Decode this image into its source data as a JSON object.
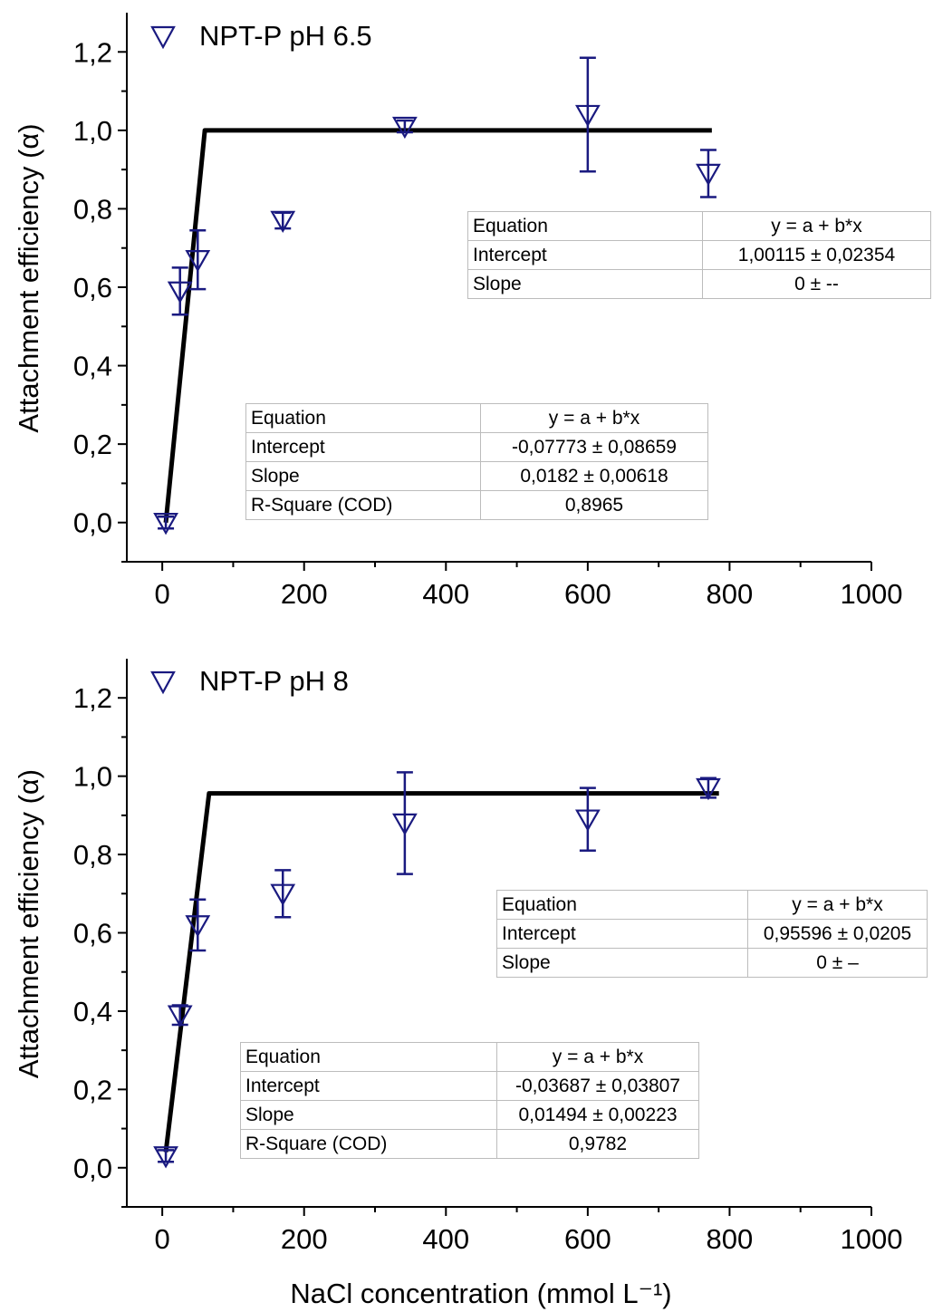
{
  "chart_data": [
    {
      "type": "scatter",
      "xlabel": "",
      "ylabel": "Attachment efficiency (α)",
      "xlim": [
        -50,
        1000
      ],
      "ylim": [
        -0.1,
        1.3
      ],
      "xticks": [
        0,
        200,
        400,
        600,
        800,
        1000
      ],
      "yticks": [
        0.0,
        0.2,
        0.4,
        0.6,
        0.8,
        1.0,
        1.2
      ],
      "xtick_labels": [
        "0",
        "200",
        "400",
        "600",
        "800",
        "1000"
      ],
      "ytick_labels": [
        "0,0",
        "0,2",
        "0,4",
        "0,6",
        "0,8",
        "1,0",
        "1,2"
      ],
      "legend_position": "top-left",
      "series": [
        {
          "name": "NPT-P pH 6.5",
          "marker": "down-triangle",
          "color": "#1a1a80",
          "x": [
            5,
            25,
            50,
            170,
            342,
            600,
            770
          ],
          "y": [
            0.0,
            0.59,
            0.67,
            0.77,
            1.01,
            1.04,
            0.89
          ],
          "err": [
            0.015,
            0.06,
            0.075,
            0.02,
            0.015,
            0.145,
            0.06
          ]
        }
      ],
      "fit_line": {
        "color": "#000000",
        "x": [
          5,
          60,
          775
        ],
        "y": [
          0.0,
          1.0,
          1.0
        ]
      },
      "tables": [
        {
          "rows": [
            [
              "Equation",
              "y = a + b*x"
            ],
            [
              "Intercept",
              "1,00115 ± 0,02354"
            ],
            [
              "Slope",
              "0 ± --"
            ]
          ]
        },
        {
          "rows": [
            [
              "Equation",
              "y = a + b*x"
            ],
            [
              "Intercept",
              "-0,07773 ± 0,08659"
            ],
            [
              "Slope",
              "0,0182 ± 0,00618"
            ],
            [
              "R-Square (COD)",
              "0,8965"
            ]
          ]
        }
      ]
    },
    {
      "type": "scatter",
      "xlabel": "NaCl concentration (mmol L⁻¹)",
      "ylabel": "Attachment efficiency (α)",
      "xlim": [
        -50,
        1000
      ],
      "ylim": [
        -0.1,
        1.3
      ],
      "xticks": [
        0,
        200,
        400,
        600,
        800,
        1000
      ],
      "yticks": [
        0.0,
        0.2,
        0.4,
        0.6,
        0.8,
        1.0,
        1.2
      ],
      "xtick_labels": [
        "0",
        "200",
        "400",
        "600",
        "800",
        "1000"
      ],
      "ytick_labels": [
        "0,0",
        "0,2",
        "0,4",
        "0,6",
        "0,8",
        "1,0",
        "1,2"
      ],
      "legend_position": "top-left",
      "series": [
        {
          "name": "NPT-P pH 8",
          "marker": "down-triangle",
          "color": "#1a1a80",
          "x": [
            5,
            25,
            50,
            170,
            342,
            600,
            770
          ],
          "y": [
            0.03,
            0.39,
            0.62,
            0.7,
            0.88,
            0.89,
            0.97
          ],
          "err": [
            0.015,
            0.025,
            0.065,
            0.06,
            0.13,
            0.08,
            0.025
          ]
        }
      ],
      "fit_line": {
        "color": "#000000",
        "x": [
          5,
          66,
          785
        ],
        "y": [
          0.04,
          0.956,
          0.956
        ]
      },
      "tables": [
        {
          "rows": [
            [
              "Equation",
              "y = a + b*x"
            ],
            [
              "Intercept",
              "0,95596 ± 0,0205"
            ],
            [
              "Slope",
              "0 ± –"
            ]
          ]
        },
        {
          "rows": [
            [
              "Equation",
              "y = a + b*x"
            ],
            [
              "Intercept",
              "-0,03687 ± 0,03807"
            ],
            [
              "Slope",
              "0,01494 ± 0,00223"
            ],
            [
              "R-Square (COD)",
              "0,9782"
            ]
          ]
        }
      ]
    }
  ]
}
